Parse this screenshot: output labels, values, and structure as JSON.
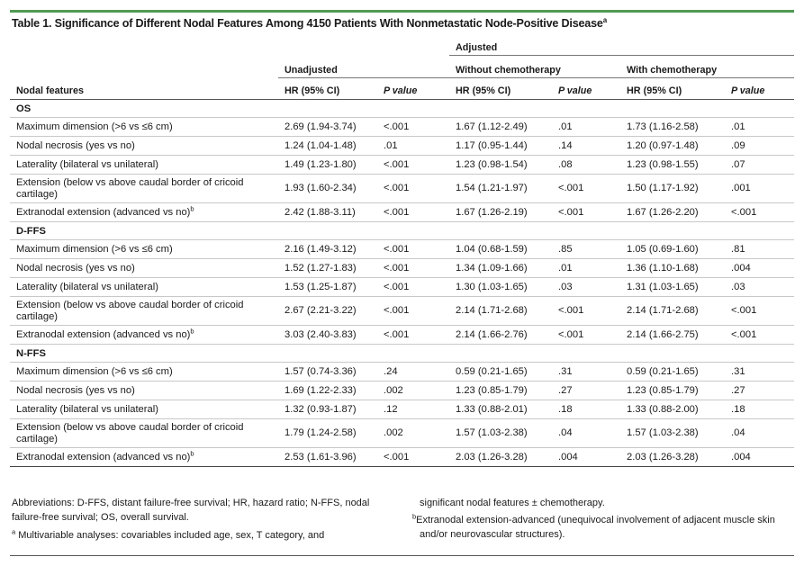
{
  "title": "Table 1. Significance of Different Nodal Features Among 4150 Patients With Nonmetastatic Node-Positive Disease",
  "title_sup": "a",
  "header": {
    "adjusted": "Adjusted",
    "unadjusted": "Unadjusted",
    "without_chemo": "Without chemotherapy",
    "with_chemo": "With chemotherapy",
    "nodal_features": "Nodal features",
    "hr": "HR (95% CI)",
    "p_value": "P value"
  },
  "sections": [
    {
      "name": "OS",
      "rows": [
        {
          "feature": "Maximum dimension (>6 vs ≤6 cm)",
          "sup": "",
          "u_hr": "2.69 (1.94-3.74)",
          "u_p": "<.001",
          "w_hr": "1.67 (1.12-2.49)",
          "w_p": ".01",
          "c_hr": "1.73 (1.16-2.58)",
          "c_p": ".01"
        },
        {
          "feature": "Nodal necrosis (yes vs no)",
          "sup": "",
          "u_hr": "1.24 (1.04-1.48)",
          "u_p": ".01",
          "w_hr": "1.17 (0.95-1.44)",
          "w_p": ".14",
          "c_hr": "1.20 (0.97-1.48)",
          "c_p": ".09"
        },
        {
          "feature": "Laterality (bilateral vs unilateral)",
          "sup": "",
          "u_hr": "1.49 (1.23-1.80)",
          "u_p": "<.001",
          "w_hr": "1.23 (0.98-1.54)",
          "w_p": ".08",
          "c_hr": "1.23 (0.98-1.55)",
          "c_p": ".07"
        },
        {
          "feature": "Extension (below vs above caudal border of cricoid cartilage)",
          "sup": "",
          "u_hr": "1.93 (1.60-2.34)",
          "u_p": "<.001",
          "w_hr": "1.54 (1.21-1.97)",
          "w_p": "<.001",
          "c_hr": "1.50 (1.17-1.92)",
          "c_p": ".001"
        },
        {
          "feature": "Extranodal extension (advanced vs no)",
          "sup": "b",
          "u_hr": "2.42 (1.88-3.11)",
          "u_p": "<.001",
          "w_hr": "1.67 (1.26-2.19)",
          "w_p": "<.001",
          "c_hr": "1.67 (1.26-2.20)",
          "c_p": "<.001"
        }
      ]
    },
    {
      "name": "D-FFS",
      "rows": [
        {
          "feature": "Maximum dimension (>6 vs ≤6 cm)",
          "sup": "",
          "u_hr": "2.16 (1.49-3.12)",
          "u_p": "<.001",
          "w_hr": "1.04 (0.68-1.59)",
          "w_p": ".85",
          "c_hr": "1.05 (0.69-1.60)",
          "c_p": ".81"
        },
        {
          "feature": "Nodal necrosis (yes vs no)",
          "sup": "",
          "u_hr": "1.52 (1.27-1.83)",
          "u_p": "<.001",
          "w_hr": "1.34 (1.09-1.66)",
          "w_p": ".01",
          "c_hr": "1.36 (1.10-1.68)",
          "c_p": ".004"
        },
        {
          "feature": "Laterality (bilateral vs unilateral)",
          "sup": "",
          "u_hr": "1.53 (1.25-1.87)",
          "u_p": "<.001",
          "w_hr": "1.30 (1.03-1.65)",
          "w_p": ".03",
          "c_hr": "1.31 (1.03-1.65)",
          "c_p": ".03"
        },
        {
          "feature": "Extension (below vs above caudal border of cricoid cartilage)",
          "sup": "",
          "u_hr": "2.67 (2.21-3.22)",
          "u_p": "<.001",
          "w_hr": "2.14 (1.71-2.68)",
          "w_p": "<.001",
          "c_hr": "2.14 (1.71-2.68)",
          "c_p": "<.001"
        },
        {
          "feature": "Extranodal extension (advanced vs no)",
          "sup": "b",
          "u_hr": "3.03 (2.40-3.83)",
          "u_p": "<.001",
          "w_hr": "2.14 (1.66-2.76)",
          "w_p": "<.001",
          "c_hr": "2.14 (1.66-2.75)",
          "c_p": "<.001"
        }
      ]
    },
    {
      "name": "N-FFS",
      "rows": [
        {
          "feature": "Maximum dimension (>6 vs ≤6 cm)",
          "sup": "",
          "u_hr": "1.57 (0.74-3.36)",
          "u_p": ".24",
          "w_hr": "0.59 (0.21-1.65)",
          "w_p": ".31",
          "c_hr": "0.59 (0.21-1.65)",
          "c_p": ".31"
        },
        {
          "feature": "Nodal necrosis (yes vs no)",
          "sup": "",
          "u_hr": "1.69 (1.22-2.33)",
          "u_p": ".002",
          "w_hr": "1.23 (0.85-1.79)",
          "w_p": ".27",
          "c_hr": "1.23 (0.85-1.79)",
          "c_p": ".27"
        },
        {
          "feature": "Laterality (bilateral vs unilateral)",
          "sup": "",
          "u_hr": "1.32 (0.93-1.87)",
          "u_p": ".12",
          "w_hr": "1.33 (0.88-2.01)",
          "w_p": ".18",
          "c_hr": "1.33 (0.88-2.00)",
          "c_p": ".18"
        },
        {
          "feature": "Extension (below vs above caudal border of cricoid cartilage)",
          "sup": "",
          "u_hr": "1.79 (1.24-2.58)",
          "u_p": ".002",
          "w_hr": "1.57 (1.03-2.38)",
          "w_p": ".04",
          "c_hr": "1.57 (1.03-2.38)",
          "c_p": ".04"
        },
        {
          "feature": "Extranodal extension (advanced vs no)",
          "sup": "b",
          "u_hr": "2.53 (1.61-3.96)",
          "u_p": "<.001",
          "w_hr": "2.03 (1.26-3.28)",
          "w_p": ".004",
          "c_hr": "2.03 (1.26-3.28)",
          "c_p": ".004"
        }
      ]
    }
  ],
  "footnotes": {
    "abbreviations": "Abbreviations: D-FFS, distant failure-free survival; HR, hazard ratio; N-FFS, nodal failure-free survival; OS, overall survival.",
    "a_marker": "a",
    "a_text": "Multivariable analyses: covariables included age, sex, T category, and significant nodal features ± chemotherapy.",
    "a_text_part1": "Multivariable analyses: covariables included age, sex, T category, and",
    "a_text_part2": "significant nodal features ± chemotherapy.",
    "b_marker": "b",
    "b_text": "Extranodal extension-advanced (unequivocal involvement of adjacent muscle skin and/or neurovascular structures)."
  }
}
